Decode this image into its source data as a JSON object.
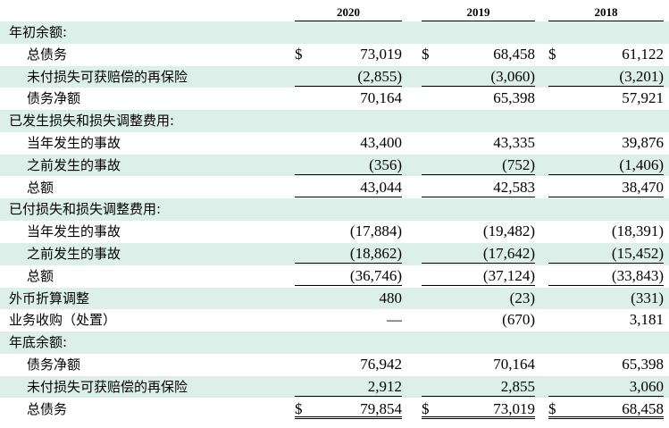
{
  "header": {
    "years": [
      "2020",
      "2019",
      "2018"
    ]
  },
  "rows": [
    {
      "label": "年初余额:",
      "level": 0,
      "shade": true,
      "values": [
        "",
        "",
        ""
      ]
    },
    {
      "label": "总债务",
      "level": 1,
      "shade": false,
      "currency": true,
      "values": [
        "73,019",
        "68,458",
        "61,122"
      ]
    },
    {
      "label": "未付损失可获赔偿的再保险",
      "level": 1,
      "shade": true,
      "values": [
        "(2,855)",
        "(3,060)",
        "(3,201)"
      ],
      "line": "single"
    },
    {
      "label": "债务净额",
      "level": 1,
      "shade": false,
      "values": [
        "70,164",
        "65,398",
        "57,921"
      ]
    },
    {
      "label": "已发生损失和损失调整费用:",
      "level": 0,
      "shade": true,
      "values": [
        "",
        "",
        ""
      ]
    },
    {
      "label": "当年发生的事故",
      "level": 1,
      "shade": false,
      "values": [
        "43,400",
        "43,335",
        "39,876"
      ]
    },
    {
      "label": "之前发生的事故",
      "level": 1,
      "shade": true,
      "values": [
        "(356)",
        "(752)",
        "(1,406)"
      ],
      "line": "single"
    },
    {
      "label": "总额",
      "level": 1,
      "shade": false,
      "values": [
        "43,044",
        "42,583",
        "38,470"
      ],
      "line": "single"
    },
    {
      "label": "已付损失和损失调整费用:",
      "level": 0,
      "shade": true,
      "values": [
        "",
        "",
        ""
      ]
    },
    {
      "label": "当年发生的事故",
      "level": 1,
      "shade": false,
      "values": [
        "(17,884)",
        "(19,482)",
        "(18,391)"
      ]
    },
    {
      "label": "之前发生的事故",
      "level": 1,
      "shade": true,
      "values": [
        "(18,862)",
        "(17,642)",
        "(15,452)"
      ],
      "line": "single"
    },
    {
      "label": "总额",
      "level": 1,
      "shade": false,
      "values": [
        "(36,746)",
        "(37,124)",
        "(33,843)"
      ],
      "line": "single"
    },
    {
      "label": "外币折算调整",
      "level": 0,
      "shade": true,
      "values": [
        "480",
        "(23)",
        "(331)"
      ]
    },
    {
      "label": "业务收购（处置）",
      "level": 0,
      "shade": false,
      "values": [
        "—",
        "(670)",
        "3,181"
      ]
    },
    {
      "label": "年底余额:",
      "level": 0,
      "shade": true,
      "values": [
        "",
        "",
        ""
      ]
    },
    {
      "label": "债务净额",
      "level": 1,
      "shade": false,
      "values": [
        "76,942",
        "70,164",
        "65,398"
      ]
    },
    {
      "label": "未付损失可获赔偿的再保险",
      "level": 1,
      "shade": true,
      "values": [
        "2,912",
        "2,855",
        "3,060"
      ],
      "line": "single"
    },
    {
      "label": "总债务",
      "level": 1,
      "shade": false,
      "currency": true,
      "values": [
        "79,854",
        "73,019",
        "68,458"
      ],
      "line": "double"
    }
  ],
  "currency_symbol": "$"
}
